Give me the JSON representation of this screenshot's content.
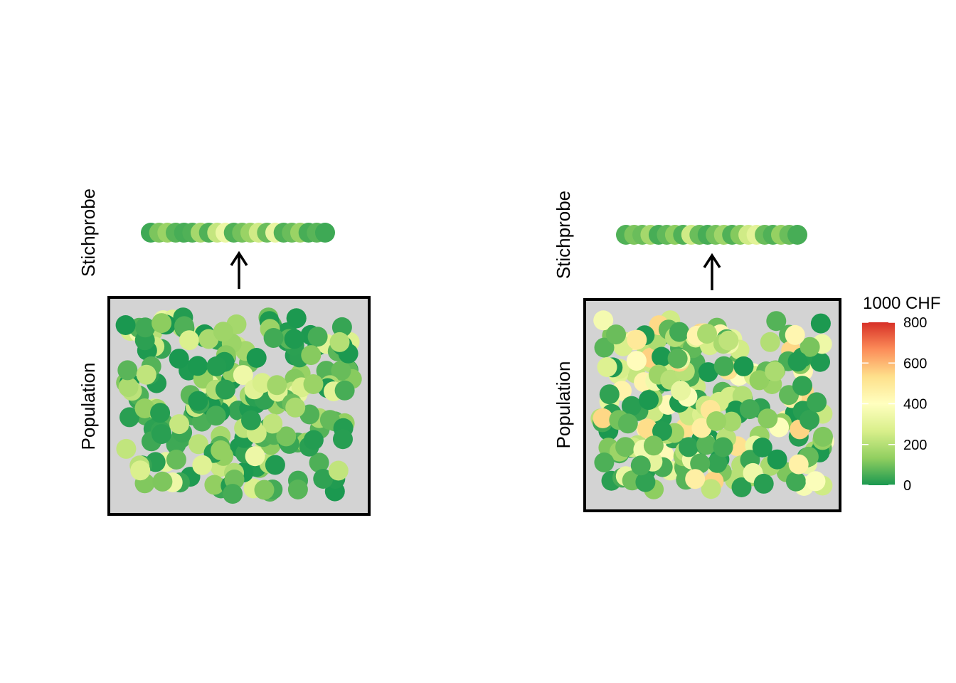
{
  "panels": [
    {
      "id": "left",
      "labels": {
        "sample": "Stichprobe",
        "population": "Population"
      },
      "sample_values": [
        40,
        110,
        150,
        70,
        50,
        60,
        170,
        60,
        230,
        330,
        60,
        100,
        150,
        250,
        90,
        320,
        60,
        90,
        150,
        50,
        70,
        40
      ],
      "population_count": 220,
      "population_value_range": [
        0,
        360
      ],
      "seed": 11
    },
    {
      "id": "right",
      "labels": {
        "sample": "Stichprobe",
        "population": "Population"
      },
      "sample_values": [
        60,
        110,
        90,
        170,
        50,
        80,
        130,
        60,
        250,
        90,
        50,
        100,
        160,
        60,
        120,
        250,
        300,
        90,
        60,
        140,
        90,
        50
      ],
      "population_count": 230,
      "population_value_range": [
        0,
        560
      ],
      "seed": 29
    }
  ],
  "legend": {
    "title": "1000 CHF",
    "ticks": [
      "800",
      "600",
      "400",
      "200",
      "0"
    ],
    "scale": [
      0,
      800
    ],
    "colors": [
      "#1a9850",
      "#91cf60",
      "#d9ef8b",
      "#ffffbf",
      "#fee08b",
      "#fc8d59",
      "#d73027"
    ]
  },
  "colors": {
    "box_fill": "#d3d3d3",
    "box_border": "#000000",
    "arrow": "#000000"
  }
}
